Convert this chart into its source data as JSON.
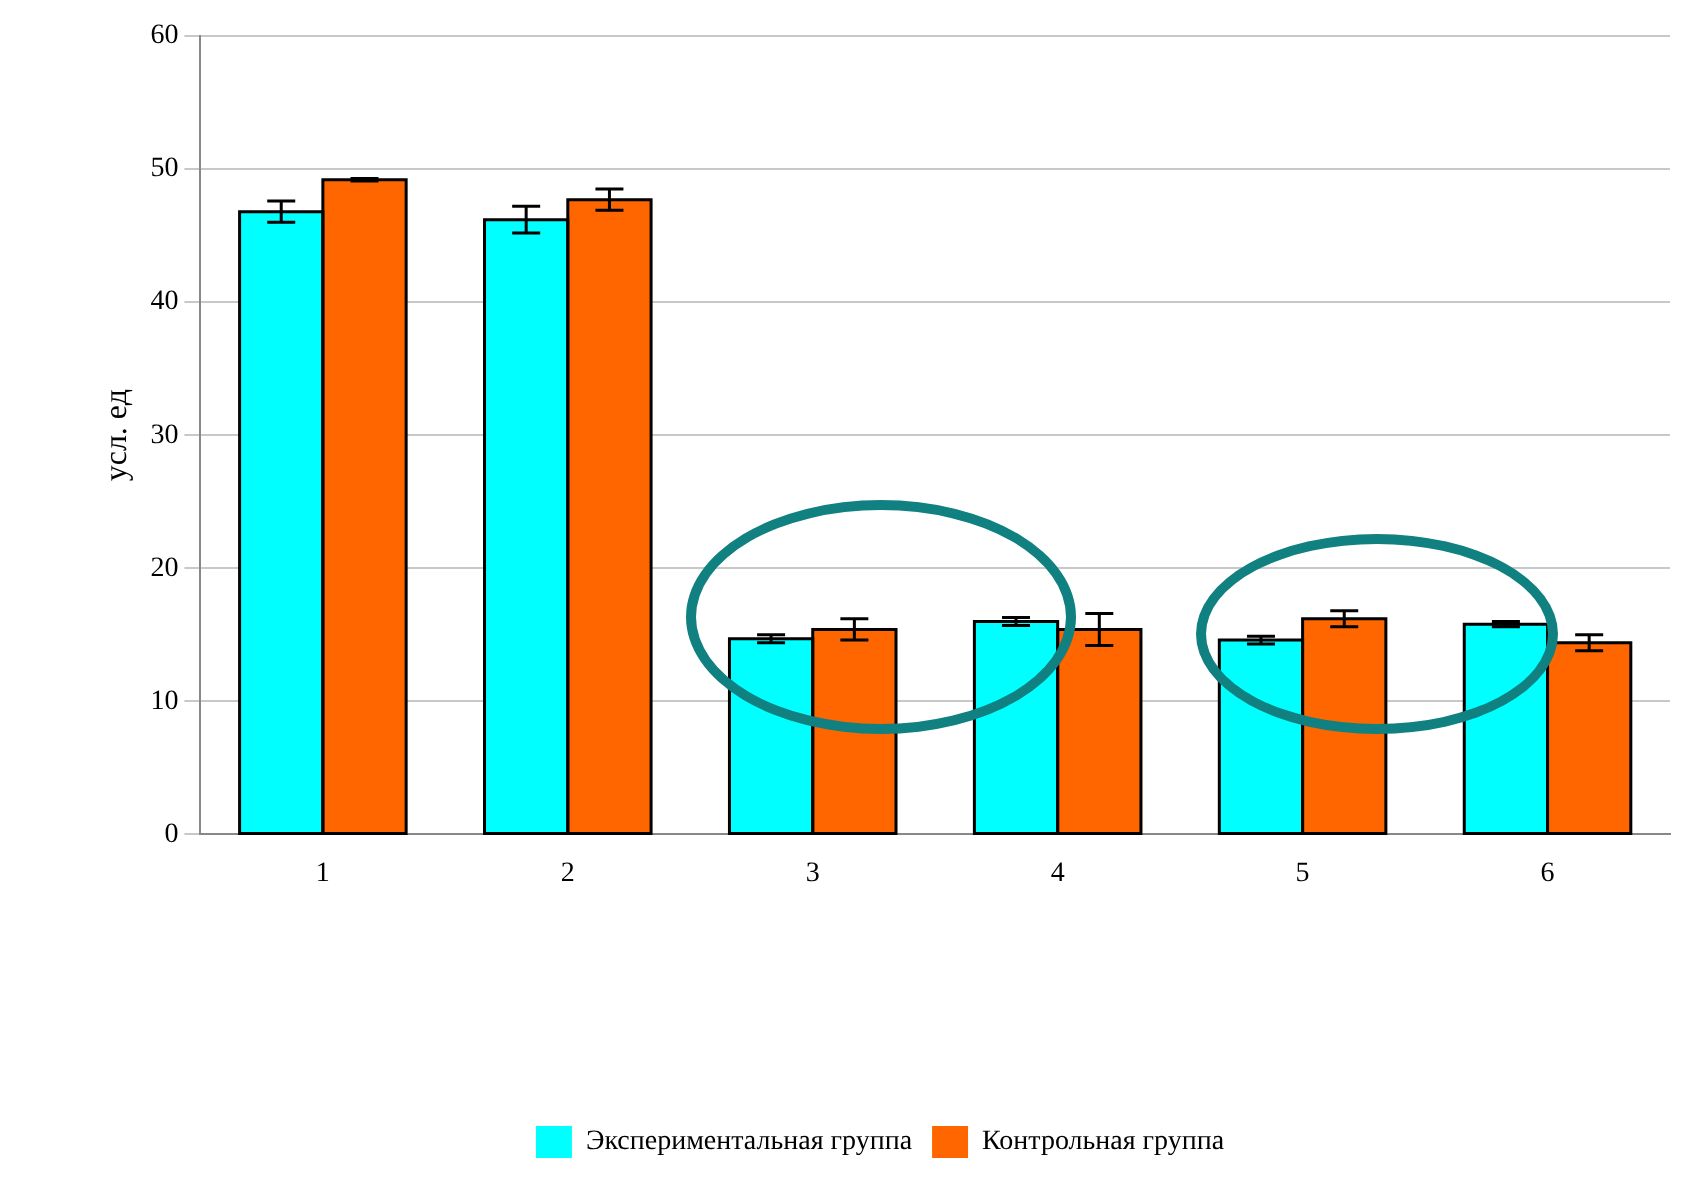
{
  "chart_data": {
    "type": "bar",
    "ylabel": "усл. ед",
    "categories": [
      "1",
      "2",
      "3",
      "4",
      "5",
      "6"
    ],
    "series": [
      {
        "name": "Экспериментальная группа",
        "color": "#00ffff",
        "values": [
          46.8,
          46.2,
          14.7,
          16.0,
          14.6,
          15.8
        ],
        "errors": [
          0.8,
          1.0,
          0.3,
          0.3,
          0.3,
          0.2
        ]
      },
      {
        "name": "Контрольная группа",
        "color": "#ff6600",
        "values": [
          49.2,
          47.7,
          15.4,
          15.4,
          16.2,
          14.4
        ],
        "errors": [
          0.1,
          0.8,
          0.8,
          1.2,
          0.6,
          0.6
        ]
      }
    ],
    "ylim": [
      0,
      60
    ],
    "yticks": [
      0,
      10,
      20,
      30,
      40,
      50,
      60
    ],
    "grid": "y",
    "legend": "bottom"
  }
}
